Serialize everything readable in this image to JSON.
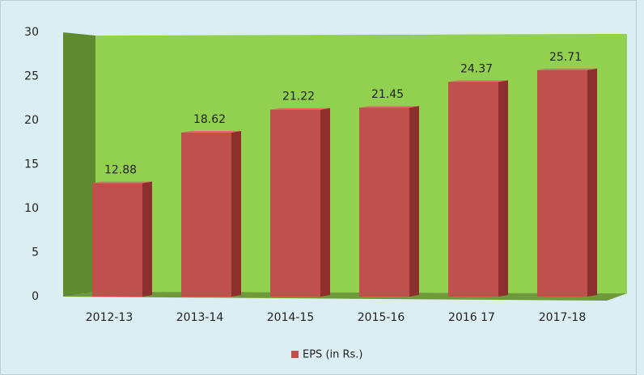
{
  "chart_data": {
    "type": "bar",
    "categories": [
      "2012-13",
      "2013-14",
      "2014-15",
      "2015-16",
      "2016 17",
      "2017-18"
    ],
    "series": [
      {
        "name": "EPS (in Rs.)",
        "color": "#c0504d",
        "values": [
          12.88,
          18.62,
          21.22,
          21.45,
          24.37,
          25.71
        ]
      }
    ],
    "ylim": [
      0,
      30
    ],
    "yticks": [
      0,
      5,
      10,
      15,
      20,
      25,
      30
    ],
    "legend": "bottom"
  }
}
